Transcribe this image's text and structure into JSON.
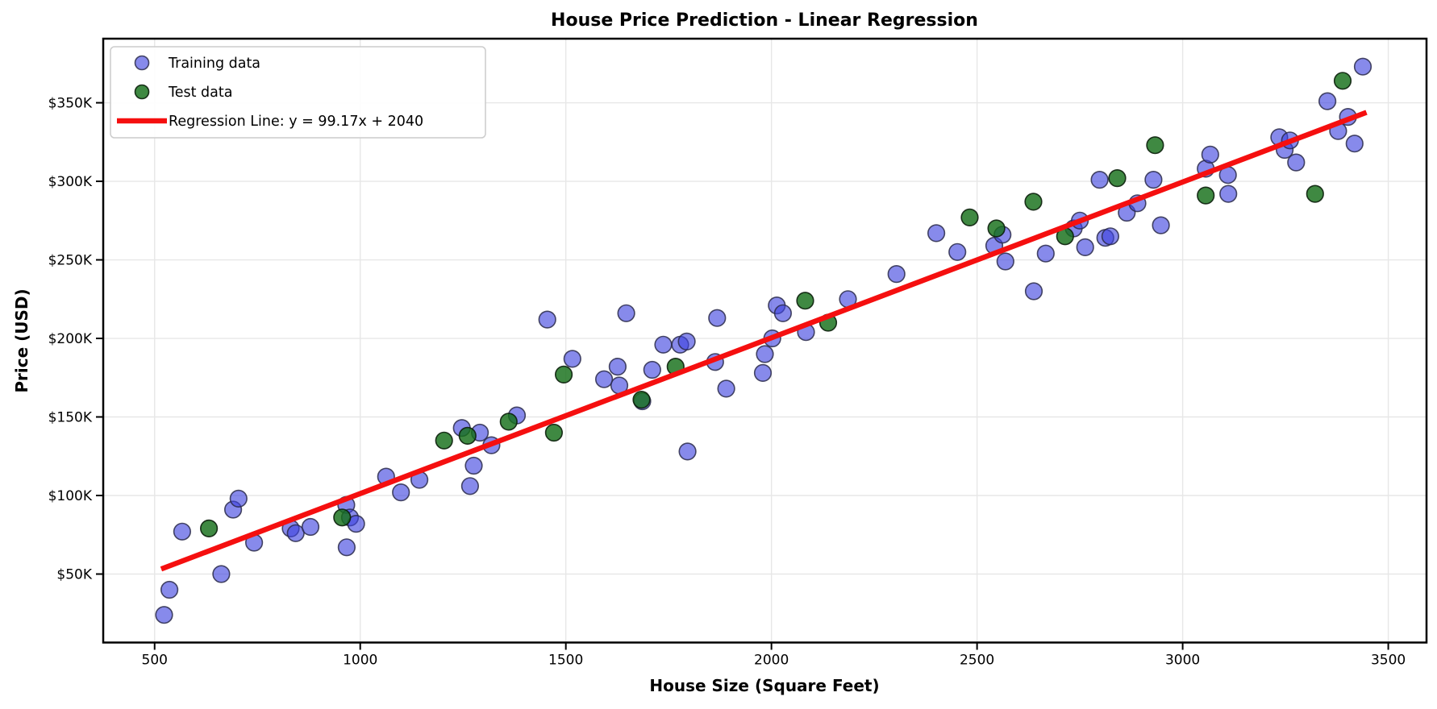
{
  "window": {
    "kind": "matplotlib-figure"
  },
  "chart_data": {
    "type": "scatter",
    "title": "House Price Prediction - Linear Regression",
    "xlabel": "House Size (Square Feet)",
    "ylabel": "Price (USD)",
    "xlim": [
      375,
      3593
    ],
    "ylim": [
      6.4,
      390.8
    ],
    "grid": true,
    "x_ticks": [
      {
        "value": 500,
        "label": "500"
      },
      {
        "value": 1000,
        "label": "1000"
      },
      {
        "value": 1500,
        "label": "1500"
      },
      {
        "value": 2000,
        "label": "2000"
      },
      {
        "value": 2500,
        "label": "2500"
      },
      {
        "value": 3000,
        "label": "3000"
      },
      {
        "value": 3500,
        "label": "3500"
      }
    ],
    "y_ticks": [
      {
        "value": 50,
        "label": "$50K"
      },
      {
        "value": 100,
        "label": "$100K"
      },
      {
        "value": 150,
        "label": "$150K"
      },
      {
        "value": 200,
        "label": "$200K"
      },
      {
        "value": 250,
        "label": "$250K"
      },
      {
        "value": 300,
        "label": "$300K"
      },
      {
        "value": 350,
        "label": "$350K"
      }
    ],
    "y_unit": "thousand USD",
    "legend": {
      "position": "upper left",
      "entries": [
        {
          "label": "Training data",
          "type": "marker",
          "key": "train"
        },
        {
          "label": "Test data",
          "type": "marker",
          "key": "test"
        },
        {
          "label": "Regression Line: y = 99.17x + 2040",
          "type": "line",
          "key": "regression"
        }
      ]
    },
    "series": [
      {
        "name": "Training data",
        "kind": "scatter",
        "points": [
          [
            523,
            24
          ],
          [
            536,
            40
          ],
          [
            567,
            77
          ],
          [
            662,
            50
          ],
          [
            691,
            91
          ],
          [
            704,
            98
          ],
          [
            742,
            70
          ],
          [
            831,
            79
          ],
          [
            843,
            76
          ],
          [
            879,
            80
          ],
          [
            966,
            94
          ],
          [
            975,
            86
          ],
          [
            990,
            82
          ],
          [
            967,
            67
          ],
          [
            1063,
            112
          ],
          [
            1099,
            102
          ],
          [
            1144,
            110
          ],
          [
            1247,
            143
          ],
          [
            1267,
            106
          ],
          [
            1276,
            119
          ],
          [
            1291,
            140
          ],
          [
            1319,
            132
          ],
          [
            1381,
            151
          ],
          [
            1455,
            212
          ],
          [
            1516,
            187
          ],
          [
            1593,
            174
          ],
          [
            1626,
            182
          ],
          [
            1630,
            170
          ],
          [
            1647,
            216
          ],
          [
            1686,
            160
          ],
          [
            1710,
            180
          ],
          [
            1737,
            196
          ],
          [
            1778,
            196
          ],
          [
            1794,
            198
          ],
          [
            1796,
            128
          ],
          [
            1863,
            185
          ],
          [
            1868,
            213
          ],
          [
            1890,
            168
          ],
          [
            1979,
            178
          ],
          [
            1984,
            190
          ],
          [
            2002,
            200
          ],
          [
            2013,
            221
          ],
          [
            2028,
            216
          ],
          [
            2084,
            204
          ],
          [
            2186,
            225
          ],
          [
            2304,
            241
          ],
          [
            2401,
            267
          ],
          [
            2452,
            255
          ],
          [
            2542,
            259
          ],
          [
            2562,
            266
          ],
          [
            2569,
            249
          ],
          [
            2638,
            230
          ],
          [
            2667,
            254
          ],
          [
            2735,
            270
          ],
          [
            2750,
            275
          ],
          [
            2763,
            258
          ],
          [
            2798,
            301
          ],
          [
            2812,
            264
          ],
          [
            2824,
            265
          ],
          [
            2864,
            280
          ],
          [
            2890,
            286
          ],
          [
            2929,
            301
          ],
          [
            2947,
            272
          ],
          [
            3056,
            308
          ],
          [
            3067,
            317
          ],
          [
            3110,
            304
          ],
          [
            3111,
            292
          ],
          [
            3235,
            328
          ],
          [
            3248,
            320
          ],
          [
            3261,
            326
          ],
          [
            3276,
            312
          ],
          [
            3352,
            351
          ],
          [
            3378,
            332
          ],
          [
            3402,
            341
          ],
          [
            3418,
            324
          ],
          [
            3438,
            373
          ]
        ]
      },
      {
        "name": "Test data",
        "kind": "scatter",
        "points": [
          [
            632,
            79
          ],
          [
            956,
            86
          ],
          [
            1204,
            135
          ],
          [
            1261,
            138
          ],
          [
            1361,
            147
          ],
          [
            1471,
            140
          ],
          [
            1495,
            177
          ],
          [
            1684,
            161
          ],
          [
            1767,
            182
          ],
          [
            2082,
            224
          ],
          [
            2138,
            210
          ],
          [
            2482,
            277
          ],
          [
            2547,
            270
          ],
          [
            2637,
            287
          ],
          [
            2714,
            265
          ],
          [
            2841,
            302
          ],
          [
            2933,
            323
          ],
          [
            3056,
            291
          ],
          [
            3322,
            292
          ],
          [
            3389,
            364
          ]
        ]
      },
      {
        "name": "Regression Line: y = 99.17x + 2040",
        "kind": "line",
        "slope": 99.17,
        "intercept": 2040,
        "x_start": 516,
        "x_end": 3447
      }
    ]
  },
  "colors": {
    "train_fill": "#3d42df",
    "train_fill_opacity": 0.62,
    "train_edge": "#2a2a4a",
    "train_edge_opacity": 0.85,
    "test_fill": "#156f19",
    "test_fill_opacity": 0.82,
    "test_edge": "#0b1f0b",
    "test_edge_opacity": 0.9,
    "regression_line": "#f50f0f",
    "grid": "#e7e7e7",
    "spine": "#000000",
    "legend_border": "#cccccc",
    "legend_background": "#ffffff",
    "background": "#ffffff",
    "text": "#000000"
  }
}
